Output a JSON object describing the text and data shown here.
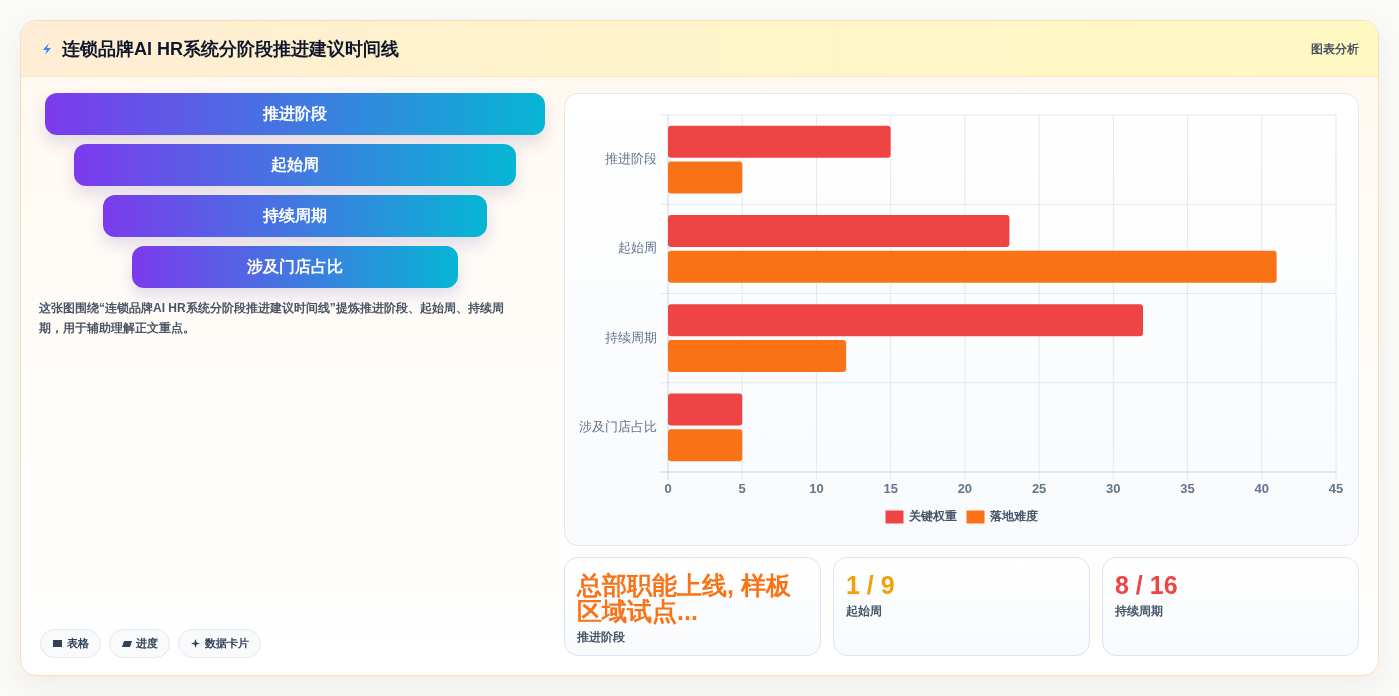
{
  "chart_data": [
    {
      "type": "other",
      "title": "连锁品牌AI HR系统分阶段推进建议时间线",
      "annotations": [
        "图表分析"
      ]
    },
    {
      "type": "other",
      "categories": [
        "推进阶段",
        "起始周",
        "持续周期",
        "涉及门店占比"
      ],
      "annotations": [
        "这张图围绕“连锁品牌AI HR系统分阶段推进建议时间线”提炼推进阶段、起始周、持续周期，用于辅助理解正文重点。",
        "表格",
        "进度",
        "数据卡片"
      ]
    },
    {
      "type": "bar",
      "orientation": "horizontal",
      "categories": [
        "推进阶段",
        "起始周",
        "持续周期",
        "涉及门店占比"
      ],
      "series": [
        {
          "name": "关键权重",
          "color": "#ef4444",
          "values": [
            15,
            23,
            32,
            5
          ]
        },
        {
          "name": "落地难度",
          "color": "#f97316",
          "values": [
            5,
            41,
            12,
            5
          ]
        }
      ],
      "xlim": [
        0,
        45
      ],
      "xticks": [
        0,
        5,
        10,
        15,
        20,
        25,
        30,
        35,
        40,
        45
      ],
      "grid": true,
      "legend": "bottom"
    },
    {
      "type": "other",
      "categories": [
        "推进阶段",
        "起始周",
        "持续周期"
      ],
      "annotations": [
        "总部职能上线, 样板区域试点...",
        "1 / 9",
        "8 / 16"
      ]
    }
  ]
}
